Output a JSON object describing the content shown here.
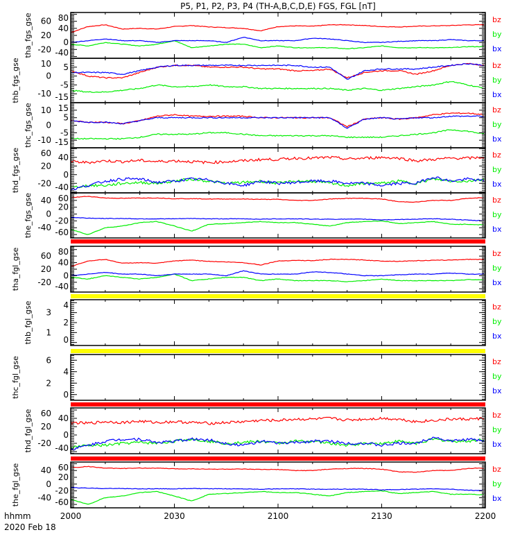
{
  "chart_data": {
    "type": "line",
    "title": "P5, P1, P2, P3, P4 (TH-A,B,C,D,E) FGS, FGL [nT]",
    "xlabel": "hhmm",
    "date_label": "2020 Feb 18",
    "x_unit": "minutes after 2000 UT",
    "xlim": [
      0,
      120
    ],
    "x_ticks": [
      {
        "v": 0,
        "label": "2000"
      },
      {
        "v": 30,
        "label": "2030"
      },
      {
        "v": 60,
        "label": "2100"
      },
      {
        "v": 90,
        "label": "2130"
      },
      {
        "v": 120,
        "label": "2200"
      }
    ],
    "x_sample_minutes": [
      0,
      5,
      10,
      15,
      20,
      25,
      30,
      35,
      40,
      45,
      50,
      55,
      60,
      65,
      70,
      75,
      80,
      85,
      90,
      95,
      100,
      105,
      110,
      115,
      120
    ],
    "legend": [
      {
        "name": "bz",
        "color": "#ff0000"
      },
      {
        "name": "by",
        "color": "#00ee00"
      },
      {
        "name": "bx",
        "color": "#0000ff"
      }
    ],
    "separators": [
      {
        "after": "the_fgs_gse",
        "color": "#ff0000"
      },
      {
        "after": "tha_fgl_gse",
        "color": "#ffff00"
      },
      {
        "after": "thb_fgl_gse",
        "color": "#ffff00"
      },
      {
        "after": "thc_fgl_gse",
        "color": "#ff0000"
      },
      {
        "after": "thd_fgl_gse",
        "color": "#ff0000"
      }
    ],
    "panels": [
      {
        "name": "tha_fgs_gse",
        "ylim": [
          -45,
          85
        ],
        "yticks": [
          -40,
          -20,
          0,
          20,
          40,
          60,
          80
        ],
        "series": {
          "bz": [
            28,
            45,
            50,
            38,
            40,
            38,
            45,
            48,
            44,
            42,
            40,
            33,
            45,
            47,
            46,
            50,
            50,
            48,
            45,
            44,
            46,
            47,
            48,
            50,
            50
          ],
          "by": [
            -5,
            -10,
            0,
            -5,
            -10,
            -5,
            5,
            -15,
            -10,
            -5,
            -5,
            -15,
            -10,
            -15,
            -15,
            -15,
            -18,
            -15,
            -10,
            -15,
            -15,
            -15,
            -15,
            -12,
            -12
          ],
          "bx": [
            0,
            5,
            10,
            5,
            5,
            0,
            5,
            5,
            5,
            0,
            15,
            5,
            5,
            5,
            12,
            10,
            5,
            0,
            0,
            3,
            5,
            5,
            8,
            5,
            5
          ]
        }
      },
      {
        "name": "thb_fgs_gse",
        "ylim": [
          -15,
          10
        ],
        "yticks": [
          -15,
          -10,
          -5,
          0,
          5,
          10
        ],
        "series": {
          "bz": [
            3,
            0,
            -1,
            -1,
            2,
            5,
            6,
            6,
            5,
            5,
            5,
            4,
            4,
            3,
            3,
            4,
            -1,
            2,
            3,
            3,
            1,
            3,
            6,
            7,
            6
          ],
          "by": [
            -8,
            -9,
            -9,
            -8,
            -7,
            -5,
            -6,
            -6,
            -5,
            -6,
            -6,
            -7,
            -7,
            -7,
            -7,
            -7,
            -8,
            -7,
            -8,
            -7,
            -6,
            -5,
            -3,
            -5,
            -7
          ],
          "bx": [
            2,
            2,
            2,
            1,
            3,
            5,
            6,
            6,
            6,
            6,
            6,
            6,
            6,
            6,
            5,
            5,
            -2,
            3,
            4,
            4,
            4,
            5,
            6,
            7,
            6
          ]
        }
      },
      {
        "name": "thc_fgs_gse",
        "ylim": [
          -15,
          15
        ],
        "yticks": [
          -15,
          -10,
          -5,
          0,
          5,
          10,
          15
        ],
        "series": {
          "bz": [
            3,
            2,
            2,
            1,
            3,
            6,
            7,
            6,
            6,
            6,
            6,
            5,
            5,
            5,
            5,
            5,
            -1,
            4,
            5,
            4,
            5,
            7,
            8,
            8,
            7
          ],
          "by": [
            -9,
            -9,
            -9,
            -9,
            -8,
            -6,
            -6,
            -6,
            -5,
            -5,
            -6,
            -7,
            -7,
            -7,
            -7,
            -7,
            -8,
            -8,
            -8,
            -7,
            -6,
            -5,
            -3,
            -4,
            -6
          ],
          "bx": [
            3,
            2,
            2,
            1,
            3,
            5,
            5,
            5,
            5,
            5,
            5,
            5,
            5,
            5,
            5,
            5,
            -2,
            4,
            5,
            4,
            5,
            5,
            6,
            6,
            6
          ]
        }
      },
      {
        "name": "thd_fgs_gse",
        "ylim": [
          -42,
          62
        ],
        "yticks": [
          -40,
          -20,
          0,
          20,
          40,
          60
        ],
        "series": {
          "bz": [
            30,
            28,
            32,
            30,
            33,
            30,
            32,
            30,
            28,
            30,
            32,
            35,
            35,
            38,
            38,
            40,
            36,
            38,
            40,
            38,
            32,
            35,
            38,
            38,
            40
          ],
          "by": [
            -30,
            -25,
            -25,
            -20,
            -18,
            -20,
            -15,
            -10,
            -15,
            -20,
            -18,
            -15,
            -20,
            -15,
            -15,
            -20,
            -25,
            -20,
            -20,
            -15,
            -20,
            -10,
            -15,
            -15,
            -10
          ],
          "bx": [
            -35,
            -25,
            -15,
            -10,
            -10,
            -18,
            -15,
            -10,
            -12,
            -20,
            -25,
            -15,
            -20,
            -18,
            -15,
            -15,
            -20,
            -20,
            -25,
            -20,
            -20,
            -5,
            -15,
            -10,
            -15
          ]
        }
      },
      {
        "name": "the_fgs_gse",
        "ylim": [
          -70,
          62
        ],
        "yticks": [
          -60,
          -40,
          -20,
          0,
          20,
          40,
          60
        ],
        "series": {
          "bz": [
            48,
            52,
            47,
            46,
            47,
            47,
            45,
            45,
            44,
            44,
            44,
            43,
            43,
            40,
            40,
            44,
            46,
            46,
            44,
            36,
            35,
            40,
            40,
            46,
            48
          ],
          "by": [
            -45,
            -60,
            -40,
            -35,
            -25,
            -22,
            -35,
            -50,
            -30,
            -28,
            -25,
            -22,
            -25,
            -25,
            -30,
            -35,
            -25,
            -22,
            -20,
            -28,
            -25,
            -22,
            -30,
            -30,
            -32
          ],
          "bx": [
            -10,
            -12,
            -13,
            -13,
            -14,
            -14,
            -14,
            -13,
            -14,
            -14,
            -14,
            -15,
            -14,
            -14,
            -15,
            -15,
            -15,
            -15,
            -17,
            -16,
            -15,
            -14,
            -15,
            -18,
            -20
          ]
        }
      },
      {
        "name": "tha_fgl_gse",
        "ylim": [
          -50,
          90
        ],
        "yticks": [
          -40,
          -20,
          0,
          20,
          40,
          60,
          80
        ],
        "same_as": "tha_fgs_gse"
      },
      {
        "name": "thb_fgl_gse",
        "ylim": [
          -0.3,
          4.3
        ],
        "yticks": [
          0,
          1,
          2,
          3,
          4
        ]
      },
      {
        "name": "thc_fgl_gse",
        "ylim": [
          -1,
          7
        ],
        "yticks": [
          0,
          2,
          4,
          6
        ]
      },
      {
        "name": "thd_fgl_gse",
        "ylim": [
          -45,
          65
        ],
        "yticks": [
          -40,
          -20,
          0,
          20,
          40,
          60
        ],
        "same_as": "thd_fgs_gse"
      },
      {
        "name": "the_fgl_gse",
        "ylim": [
          -70,
          65
        ],
        "yticks": [
          -60,
          -40,
          -20,
          0,
          20,
          40,
          60
        ],
        "same_as": "the_fgs_gse"
      }
    ]
  }
}
